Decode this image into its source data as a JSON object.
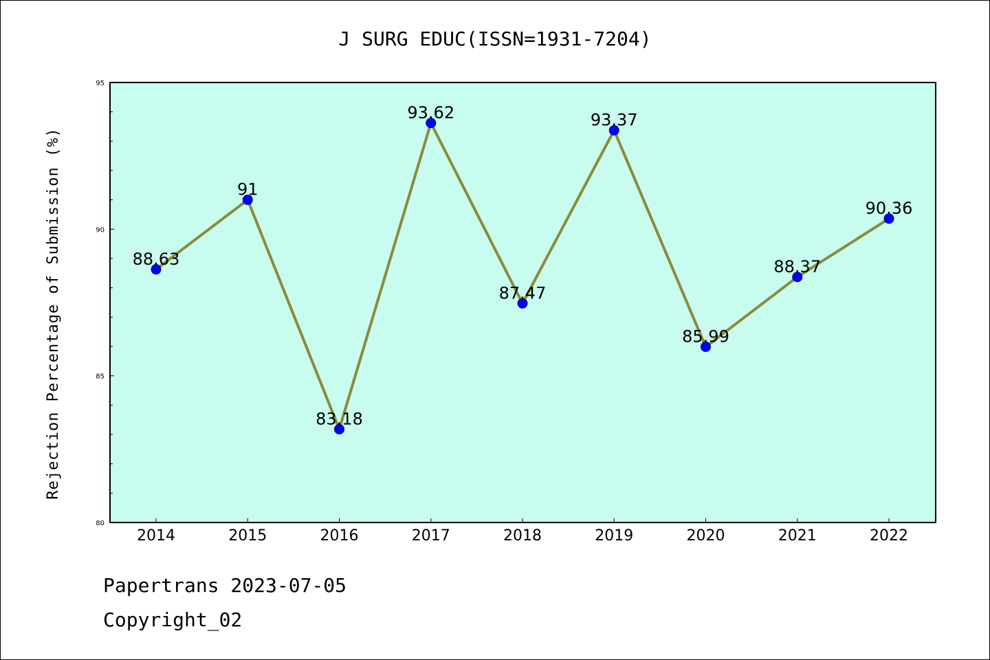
{
  "chart_data": {
    "type": "line",
    "title": "J SURG EDUC(ISSN=1931-7204)",
    "xlabel": "",
    "ylabel": "Rejection Percentage of Submission (%)",
    "categories": [
      "2014",
      "2015",
      "2016",
      "2017",
      "2018",
      "2019",
      "2020",
      "2021",
      "2022"
    ],
    "series": [
      {
        "values": [
          88.63,
          91,
          83.18,
          93.62,
          87.47,
          93.37,
          85.99,
          88.37,
          90.36
        ],
        "labels": [
          "88.63",
          "91",
          "83.18",
          "93.62",
          "87.47",
          "93.37",
          "85.99",
          "88.37",
          "90.36"
        ]
      }
    ],
    "ylim": [
      80,
      95
    ],
    "yticks": [
      "80",
      "85",
      "90",
      "95"
    ],
    "grid": false,
    "legend": "none",
    "colors": {
      "plot_background": "#c8fcee",
      "line": "#8b8b3a",
      "marker": "#0000ff"
    }
  },
  "footer": {
    "line1": "Papertrans 2023-07-05",
    "line2": "Copyright_02"
  }
}
